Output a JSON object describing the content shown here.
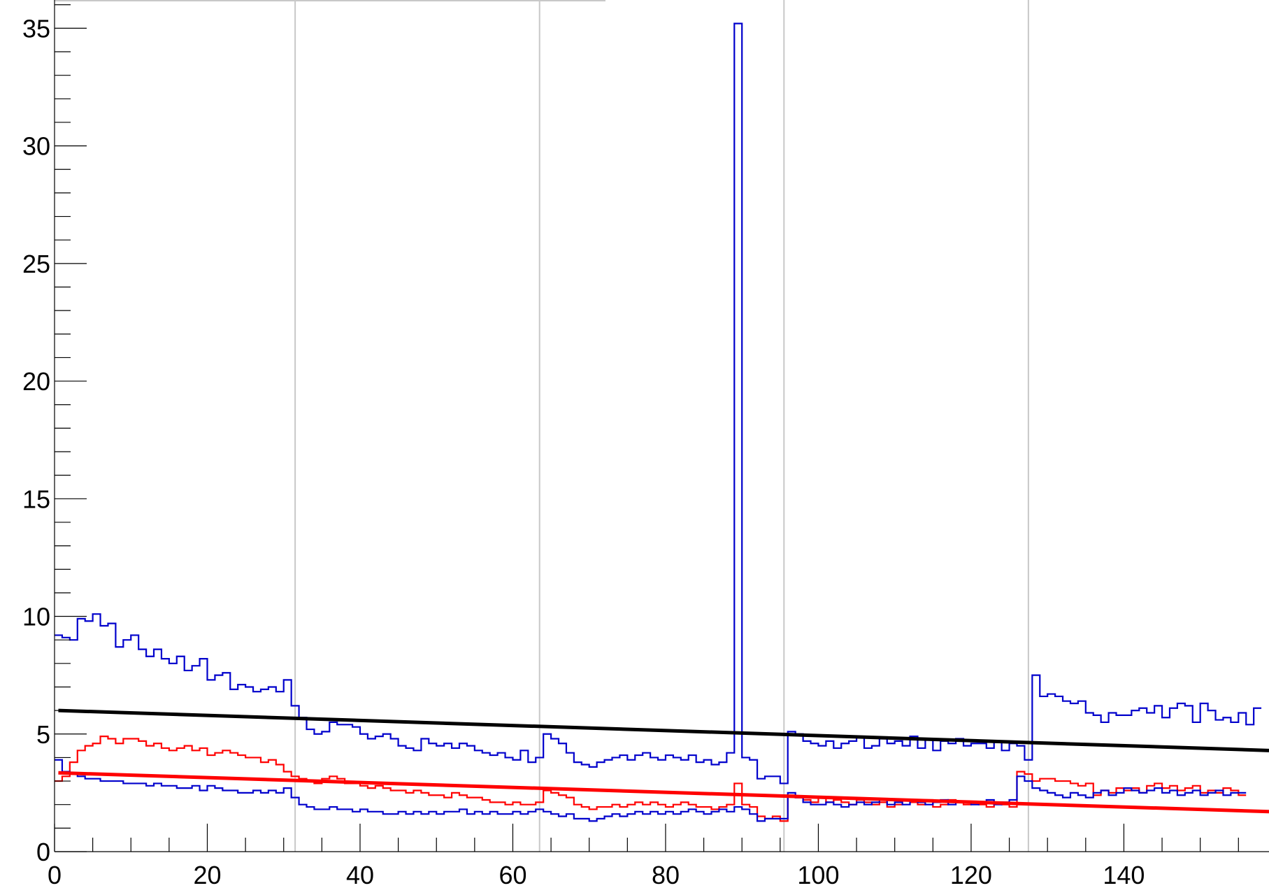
{
  "chart_data": {
    "type": "line",
    "title": "",
    "xlabel": "",
    "ylabel": "",
    "xlim": [
      0,
      159
    ],
    "ylim": [
      0,
      36.2
    ],
    "x_ticks": [
      0,
      20,
      40,
      60,
      80,
      100,
      120,
      140
    ],
    "y_ticks": [
      0,
      5,
      10,
      15,
      20,
      25,
      30,
      35
    ],
    "dividers_x": [
      31.5,
      63.5,
      95.5,
      127.5
    ],
    "grid": false,
    "legend": "none",
    "series": [
      {
        "style": "step",
        "color": "#0000cc",
        "values": [
          9.2,
          9.1,
          9.0,
          9.9,
          9.8,
          10.1,
          9.6,
          9.7,
          8.7,
          9.0,
          9.2,
          8.6,
          8.3,
          8.6,
          8.2,
          8.0,
          8.3,
          7.7,
          7.9,
          8.2,
          7.3,
          7.5,
          7.6,
          6.9,
          7.1,
          7.0,
          6.8,
          6.9,
          7.0,
          6.8,
          7.3,
          6.2,
          5.7,
          5.2,
          5.0,
          5.1,
          5.5,
          5.4,
          5.4,
          5.3,
          5.0,
          4.8,
          4.9,
          5.0,
          4.8,
          4.5,
          4.4,
          4.3,
          4.8,
          4.6,
          4.5,
          4.6,
          4.4,
          4.6,
          4.5,
          4.3,
          4.2,
          4.1,
          4.2,
          4.0,
          3.9,
          4.3,
          3.8,
          4.0,
          5.0,
          4.8,
          4.6,
          4.2,
          3.8,
          3.7,
          3.6,
          3.8,
          3.9,
          4.0,
          4.1,
          3.9,
          4.1,
          4.2,
          4.0,
          3.9,
          4.1,
          4.0,
          3.9,
          4.1,
          3.8,
          3.9,
          3.7,
          3.8,
          4.2,
          35.2,
          4.0,
          3.9,
          3.1,
          3.2,
          3.2,
          2.9,
          5.1,
          5.0,
          4.7,
          4.6,
          4.5,
          4.7,
          4.4,
          4.6,
          4.7,
          4.9,
          4.4,
          4.5,
          4.8,
          4.6,
          4.7,
          4.5,
          4.9,
          4.4,
          4.8,
          4.3,
          4.7,
          4.6,
          4.8,
          4.5,
          4.6,
          4.6,
          4.4,
          4.7,
          4.3,
          4.6,
          4.5,
          3.9,
          7.5,
          6.6,
          6.7,
          6.6,
          6.4,
          6.3,
          6.4,
          5.9,
          5.8,
          5.5,
          5.9,
          5.8,
          5.8,
          6.0,
          6.1,
          5.9,
          6.2,
          5.7,
          6.1,
          6.3,
          6.2,
          5.5,
          6.3,
          6.0,
          5.6,
          5.7,
          5.5,
          5.9,
          5.4,
          6.1
        ]
      },
      {
        "style": "step",
        "color": "#ff0000",
        "values": [
          3.0,
          3.2,
          3.8,
          4.3,
          4.5,
          4.6,
          4.9,
          4.8,
          4.6,
          4.8,
          4.8,
          4.7,
          4.5,
          4.6,
          4.4,
          4.3,
          4.4,
          4.5,
          4.3,
          4.4,
          4.1,
          4.2,
          4.3,
          4.2,
          4.1,
          4.0,
          4.0,
          3.8,
          3.9,
          3.7,
          3.4,
          3.2,
          3.1,
          3.0,
          2.9,
          3.1,
          3.2,
          3.1,
          2.9,
          2.9,
          2.8,
          2.7,
          2.8,
          2.7,
          2.6,
          2.6,
          2.5,
          2.6,
          2.5,
          2.4,
          2.4,
          2.3,
          2.5,
          2.4,
          2.3,
          2.3,
          2.2,
          2.1,
          2.1,
          2.0,
          2.1,
          2.0,
          2.0,
          2.1,
          2.6,
          2.5,
          2.4,
          2.3,
          2.0,
          1.9,
          1.8,
          1.9,
          1.9,
          2.0,
          1.9,
          2.0,
          2.1,
          2.0,
          2.1,
          2.0,
          1.9,
          2.0,
          2.1,
          2.0,
          1.9,
          1.9,
          1.8,
          1.9,
          2.0,
          2.9,
          2.0,
          1.9,
          1.5,
          1.4,
          1.5,
          1.3,
          2.4,
          2.3,
          2.2,
          2.1,
          2.3,
          2.1,
          2.2,
          2.1,
          2.0,
          2.2,
          2.1,
          2.0,
          2.1,
          1.9,
          2.0,
          2.2,
          2.1,
          2.0,
          2.2,
          1.9,
          2.0,
          2.2,
          2.1,
          2.0,
          2.1,
          2.0,
          1.9,
          2.1,
          2.0,
          1.9,
          3.4,
          3.3,
          3.0,
          3.1,
          3.1,
          3.0,
          3.0,
          2.9,
          2.8,
          2.9,
          2.4,
          2.6,
          2.5,
          2.7,
          2.6,
          2.7,
          2.5,
          2.8,
          2.9,
          2.7,
          2.8,
          2.6,
          2.7,
          2.8,
          2.5,
          2.6,
          2.5,
          2.7,
          2.6,
          2.4
        ]
      },
      {
        "style": "step",
        "color": "#0000cc",
        "values": [
          3.9,
          3.4,
          3.3,
          3.2,
          3.1,
          3.1,
          3.0,
          3.0,
          3.0,
          2.9,
          2.9,
          2.9,
          2.8,
          2.9,
          2.8,
          2.8,
          2.7,
          2.7,
          2.8,
          2.6,
          2.8,
          2.7,
          2.6,
          2.6,
          2.5,
          2.5,
          2.6,
          2.5,
          2.6,
          2.5,
          2.7,
          2.3,
          2.0,
          1.9,
          1.8,
          1.8,
          1.9,
          1.8,
          1.8,
          1.7,
          1.8,
          1.7,
          1.7,
          1.6,
          1.6,
          1.7,
          1.6,
          1.7,
          1.6,
          1.7,
          1.6,
          1.7,
          1.7,
          1.8,
          1.6,
          1.7,
          1.6,
          1.7,
          1.6,
          1.6,
          1.7,
          1.6,
          1.7,
          1.8,
          1.7,
          1.6,
          1.5,
          1.6,
          1.4,
          1.4,
          1.3,
          1.4,
          1.5,
          1.6,
          1.5,
          1.6,
          1.7,
          1.6,
          1.7,
          1.6,
          1.7,
          1.6,
          1.7,
          1.8,
          1.7,
          1.6,
          1.7,
          1.8,
          1.7,
          1.9,
          1.8,
          1.6,
          1.3,
          1.4,
          1.4,
          1.4,
          2.5,
          2.3,
          2.1,
          2.0,
          2.0,
          2.1,
          2.0,
          1.9,
          2.0,
          2.1,
          2.0,
          2.1,
          2.2,
          2.0,
          2.1,
          2.0,
          2.2,
          2.1,
          2.0,
          2.1,
          2.2,
          2.0,
          2.1,
          2.1,
          2.0,
          2.1,
          2.2,
          2.0,
          2.1,
          2.2,
          3.2,
          3.0,
          2.7,
          2.6,
          2.5,
          2.4,
          2.3,
          2.5,
          2.4,
          2.3,
          2.5,
          2.6,
          2.4,
          2.5,
          2.7,
          2.6,
          2.5,
          2.6,
          2.7,
          2.5,
          2.6,
          2.4,
          2.5,
          2.6,
          2.4,
          2.5,
          2.6,
          2.4,
          2.5,
          2.5
        ]
      },
      {
        "style": "line",
        "color": "#000000",
        "x": [
          0.5,
          159
        ],
        "values": [
          6.0,
          4.3
        ]
      },
      {
        "style": "line",
        "color": "#ff0000",
        "x": [
          0.5,
          159
        ],
        "values": [
          3.35,
          1.7
        ]
      }
    ]
  }
}
